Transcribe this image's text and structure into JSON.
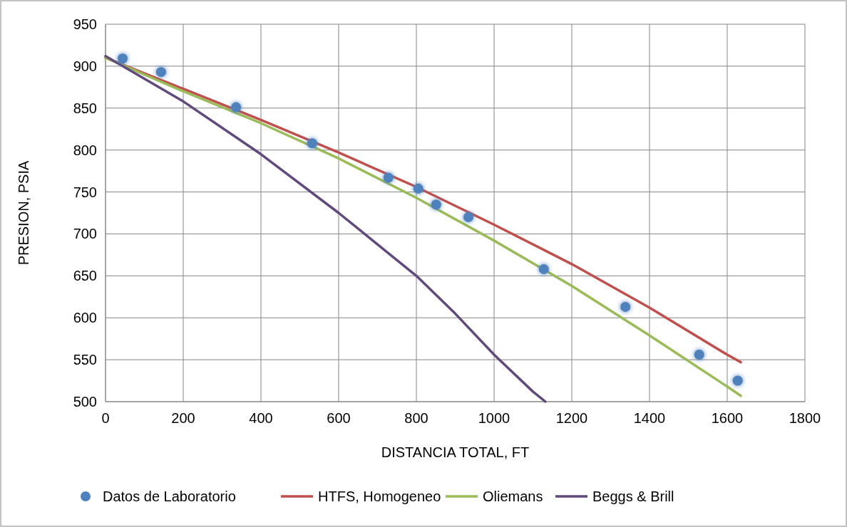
{
  "chart_data": {
    "type": "line",
    "xlabel": "DISTANCIA TOTAL, FT",
    "ylabel": "PRESION, PSIA",
    "xlim": [
      0,
      1800
    ],
    "xticks": [
      0,
      200,
      400,
      600,
      800,
      1000,
      1200,
      1400,
      1600,
      1800
    ],
    "ylim": [
      500,
      950
    ],
    "yticks": [
      500,
      550,
      600,
      650,
      700,
      750,
      800,
      850,
      900,
      950
    ],
    "grid": true,
    "legend": "bottom",
    "series": [
      {
        "name": "Datos de Laboratorio",
        "type": "scatter",
        "marker": "circle",
        "color": "#4f81bd",
        "x": [
          44,
          143,
          336,
          532,
          728,
          805,
          851,
          934,
          1128,
          1338,
          1528,
          1627
        ],
        "values": [
          909,
          893,
          851,
          808,
          767,
          754,
          735,
          720,
          658,
          613,
          556,
          525
        ]
      },
      {
        "name": "HTFS, Homogeneo",
        "color": "#c0504d",
        "x": [
          0,
          200,
          400,
          600,
          800,
          1000,
          1200,
          1400,
          1600,
          1635
        ],
        "values": [
          910,
          873,
          836,
          797,
          756,
          711,
          664,
          612,
          556,
          547
        ]
      },
      {
        "name": "Oliemans",
        "color": "#9bbb59",
        "x": [
          0,
          200,
          400,
          600,
          800,
          1000,
          1200,
          1400,
          1600,
          1635
        ],
        "values": [
          910,
          870,
          832,
          790,
          743,
          692,
          638,
          579,
          518,
          507
        ]
      },
      {
        "name": "Beggs & Brill",
        "color": "#604a7b",
        "x": [
          0,
          200,
          400,
          600,
          800,
          900,
          1000,
          1100,
          1132
        ],
        "values": [
          912,
          858,
          795,
          725,
          650,
          605,
          556,
          512,
          500
        ]
      }
    ]
  }
}
